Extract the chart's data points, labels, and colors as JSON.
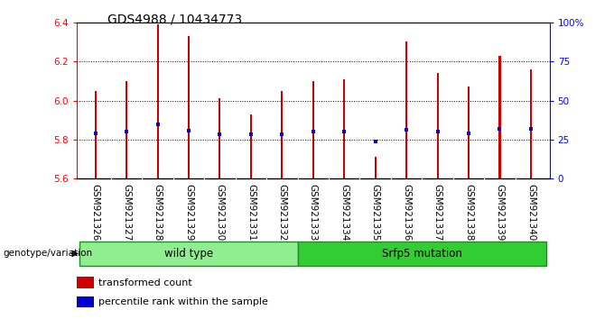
{
  "title": "GDS4988 / 10434773",
  "samples": [
    "GSM921326",
    "GSM921327",
    "GSM921328",
    "GSM921329",
    "GSM921330",
    "GSM921331",
    "GSM921332",
    "GSM921333",
    "GSM921334",
    "GSM921335",
    "GSM921336",
    "GSM921337",
    "GSM921338",
    "GSM921339",
    "GSM921340"
  ],
  "transformed_count": [
    6.05,
    6.1,
    6.39,
    6.33,
    6.01,
    5.93,
    6.05,
    6.1,
    6.11,
    5.71,
    6.3,
    6.14,
    6.07,
    6.23,
    6.16
  ],
  "percentile_rank": [
    5.83,
    5.84,
    5.88,
    5.845,
    5.825,
    5.825,
    5.825,
    5.84,
    5.84,
    5.79,
    5.85,
    5.84,
    5.83,
    5.855,
    5.855
  ],
  "ymin": 5.6,
  "ymax": 6.4,
  "y_ticks": [
    5.6,
    5.8,
    6.0,
    6.2,
    6.4
  ],
  "right_yticks": [
    0,
    25,
    50,
    75,
    100
  ],
  "right_ytick_labels": [
    "0",
    "25",
    "50",
    "75",
    "100%"
  ],
  "bar_color": "#CC0000",
  "percentile_color": "#0000CC",
  "bar_width": 0.06,
  "groups": [
    {
      "label": "wild type",
      "start": 0,
      "end": 6,
      "color": "#90EE90"
    },
    {
      "label": "Srfp5 mutation",
      "start": 7,
      "end": 14,
      "color": "#32CD32"
    }
  ],
  "genotype_label": "genotype/variation",
  "legend_items": [
    {
      "label": "transformed count",
      "color": "#CC0000"
    },
    {
      "label": "percentile rank within the sample",
      "color": "#0000CC"
    }
  ],
  "bg_color": "#D3D3D3",
  "plot_bg": "#FFFFFF",
  "title_fontsize": 10,
  "tick_fontsize": 7.5,
  "label_fontsize": 8
}
